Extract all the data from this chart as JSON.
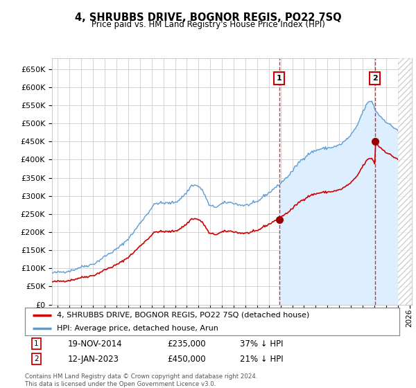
{
  "title": "4, SHRUBBS DRIVE, BOGNOR REGIS, PO22 7SQ",
  "subtitle": "Price paid vs. HM Land Registry's House Price Index (HPI)",
  "ylim": [
    0,
    680000
  ],
  "yticks": [
    0,
    50000,
    100000,
    150000,
    200000,
    250000,
    300000,
    350000,
    400000,
    450000,
    500000,
    550000,
    600000,
    650000
  ],
  "xlim_start": 1995.5,
  "xlim_end": 2026.2,
  "background_color": "#ffffff",
  "grid_color": "#cccccc",
  "hpi_line_color": "#5b9bd5",
  "hpi_fill_color": "#ddeeff",
  "price_line_color": "#cc0000",
  "marker_color": "#990000",
  "sale1_x": 2014.88,
  "sale1_y": 235000,
  "sale2_x": 2023.04,
  "sale2_y": 450000,
  "sale1_date_str": "19-NOV-2014",
  "sale1_pct": "37%",
  "sale2_date_str": "12-JAN-2023",
  "sale2_pct": "21%",
  "legend_label_price": "4, SHRUBBS DRIVE, BOGNOR REGIS, PO22 7SQ (detached house)",
  "legend_label_hpi": "HPI: Average price, detached house, Arun",
  "footer": "Contains HM Land Registry data © Crown copyright and database right 2024.\nThis data is licensed under the Open Government Licence v3.0.",
  "hpi_fill_start_x": 2014.88,
  "hatch_start_x": 2025.0
}
